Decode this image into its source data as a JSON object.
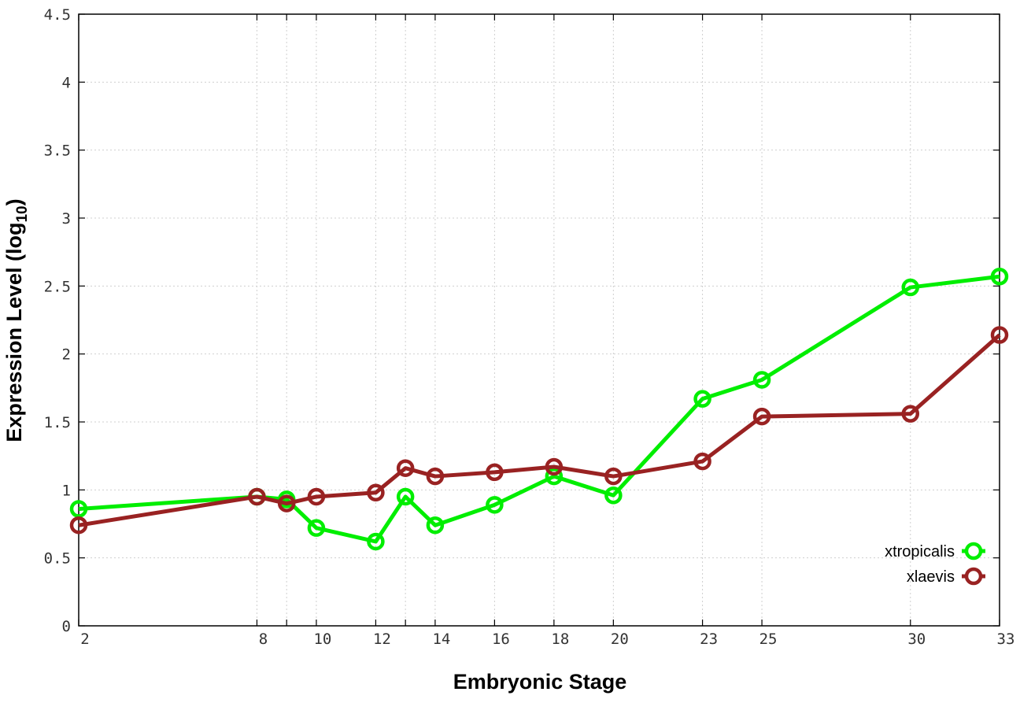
{
  "chart_data": {
    "type": "line",
    "xlabel": "Embryonic Stage",
    "ylabel_main": "Expression Level (log",
    "ylabel_sub": "10",
    "ylabel_end": ")",
    "x_ticks": [
      "2",
      "8",
      "9",
      "10",
      "12",
      "13",
      "14",
      "16",
      "18",
      "20",
      "23",
      "25",
      "30",
      "33"
    ],
    "x_tick_labels": [
      "2",
      "8",
      "",
      "10",
      "12",
      "",
      "14",
      "16",
      "18",
      "20",
      "23",
      "25",
      "30",
      "33"
    ],
    "y_ticks": [
      "0",
      "0.5",
      "1",
      "1.5",
      "2",
      "2.5",
      "3",
      "3.5",
      "4",
      "4.5"
    ],
    "ylim": [
      0,
      4.5
    ],
    "grid": true,
    "legend_position": "bottom-right",
    "series": [
      {
        "name": "xtropicalis",
        "color": "#00ee00",
        "values": [
          0.86,
          0.95,
          0.93,
          0.72,
          0.62,
          0.95,
          0.74,
          0.89,
          1.1,
          0.96,
          1.67,
          1.81,
          2.49,
          2.57
        ]
      },
      {
        "name": "xlaevis",
        "color": "#992222",
        "values": [
          0.74,
          0.95,
          0.9,
          0.95,
          0.98,
          1.16,
          1.1,
          1.13,
          1.17,
          1.1,
          1.21,
          1.54,
          1.56,
          2.14
        ]
      }
    ]
  }
}
